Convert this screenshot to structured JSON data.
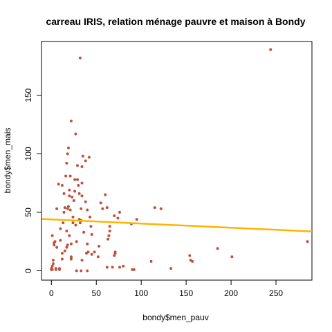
{
  "chart_data": {
    "type": "scatter",
    "title": "carreau IRIS, relation ménage pauvre et maison à Bondy",
    "xlabel": "bondy$men_pauv",
    "ylabel": "bondy$men_mais",
    "xlim": [
      -11,
      290
    ],
    "ylim": [
      -8,
      196
    ],
    "xticks": [
      0,
      50,
      100,
      150,
      200,
      250
    ],
    "yticks": [
      0,
      50,
      100,
      150
    ],
    "colors": {
      "points": "#c0503a",
      "line": "#ffb300",
      "axis": "#000000"
    },
    "trend_line": {
      "x": [
        -11,
        290
      ],
      "y": [
        44.3,
        33.6
      ]
    },
    "points": [
      [
        0,
        1
      ],
      [
        0,
        2
      ],
      [
        1,
        4
      ],
      [
        1,
        1
      ],
      [
        1,
        30
      ],
      [
        2,
        6
      ],
      [
        2,
        9
      ],
      [
        3,
        22
      ],
      [
        3,
        24
      ],
      [
        4,
        25
      ],
      [
        5,
        1
      ],
      [
        5,
        2
      ],
      [
        6,
        20
      ],
      [
        6,
        53
      ],
      [
        8,
        74
      ],
      [
        9,
        2
      ],
      [
        9,
        1
      ],
      [
        10,
        26
      ],
      [
        10,
        36
      ],
      [
        12,
        15
      ],
      [
        12,
        10
      ],
      [
        12,
        73
      ],
      [
        13,
        41
      ],
      [
        14,
        66
      ],
      [
        14,
        50
      ],
      [
        15,
        17
      ],
      [
        15,
        54
      ],
      [
        16,
        81
      ],
      [
        17,
        92
      ],
      [
        17,
        20
      ],
      [
        17,
        34
      ],
      [
        18,
        53
      ],
      [
        18,
        100
      ],
      [
        18,
        22
      ],
      [
        19,
        105
      ],
      [
        19,
        55
      ],
      [
        20,
        64
      ],
      [
        20,
        69
      ],
      [
        20,
        30
      ],
      [
        21,
        52
      ],
      [
        21,
        81
      ],
      [
        22,
        10
      ],
      [
        22,
        11
      ],
      [
        22,
        23
      ],
      [
        22,
        12
      ],
      [
        22,
        128
      ],
      [
        23,
        63
      ],
      [
        24,
        41
      ],
      [
        24,
        46
      ],
      [
        25,
        60
      ],
      [
        26,
        78
      ],
      [
        26,
        68
      ],
      [
        27,
        117
      ],
      [
        27,
        39
      ],
      [
        28,
        25
      ],
      [
        28,
        0
      ],
      [
        29,
        78
      ],
      [
        29,
        90
      ],
      [
        30,
        73
      ],
      [
        31,
        66
      ],
      [
        31,
        44
      ],
      [
        32,
        182
      ],
      [
        32,
        41
      ],
      [
        33,
        53
      ],
      [
        33,
        43
      ],
      [
        33,
        0
      ],
      [
        34,
        9
      ],
      [
        34,
        64
      ],
      [
        34,
        75
      ],
      [
        34,
        89
      ],
      [
        35,
        98
      ],
      [
        36,
        33
      ],
      [
        38,
        94
      ],
      [
        38,
        59
      ],
      [
        39,
        15
      ],
      [
        40,
        52
      ],
      [
        40,
        23
      ],
      [
        40,
        0
      ],
      [
        41,
        16
      ],
      [
        42,
        97
      ],
      [
        43,
        46
      ],
      [
        44,
        38
      ],
      [
        45,
        31
      ],
      [
        45,
        14
      ],
      [
        48,
        16
      ],
      [
        52,
        12
      ],
      [
        53,
        21
      ],
      [
        55,
        58
      ],
      [
        57,
        53
      ],
      [
        60,
        65
      ],
      [
        62,
        3
      ],
      [
        62,
        54
      ],
      [
        63,
        27
      ],
      [
        64,
        30
      ],
      [
        65,
        34
      ],
      [
        65,
        38
      ],
      [
        68,
        3
      ],
      [
        70,
        13
      ],
      [
        70,
        47
      ],
      [
        71,
        15
      ],
      [
        71,
        16
      ],
      [
        74,
        45
      ],
      [
        76,
        50
      ],
      [
        76,
        3
      ],
      [
        80,
        4
      ],
      [
        89,
        40
      ],
      [
        90,
        1
      ],
      [
        92,
        1
      ],
      [
        95,
        44
      ],
      [
        111,
        8
      ],
      [
        115,
        54
      ],
      [
        122,
        53
      ],
      [
        133,
        2
      ],
      [
        154,
        13
      ],
      [
        155,
        9
      ],
      [
        157,
        8
      ],
      [
        185,
        19
      ],
      [
        201,
        12
      ],
      [
        244,
        189
      ],
      [
        285,
        25
      ]
    ]
  }
}
